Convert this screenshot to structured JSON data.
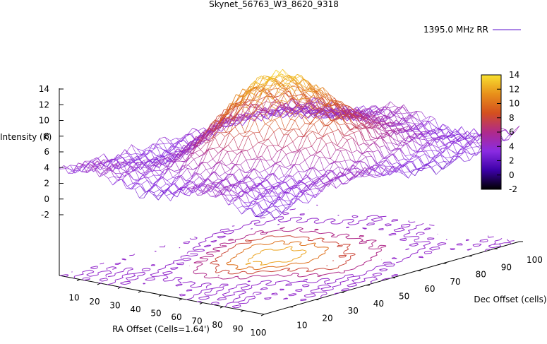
{
  "chart_data": {
    "type": "surface3d",
    "title": "Skynet_56763_W3_8620_9318",
    "legend": {
      "label": "1395.0 MHz RR",
      "color": "#7b3fd6",
      "placement": "top-right"
    },
    "xlabel": "RA Offset (Cells=1.64')",
    "ylabel": "Dec Offset (cells)",
    "zlabel": "Intensity (K)",
    "x_ticks": [
      "10",
      "20",
      "30",
      "40",
      "50",
      "60",
      "70",
      "80",
      "90",
      "100"
    ],
    "y_ticks": [
      "10",
      "20",
      "30",
      "40",
      "50",
      "60",
      "70",
      "80",
      "90",
      "100"
    ],
    "z_ticks": [
      "-2",
      "0",
      "2",
      "4",
      "6",
      "8",
      "10",
      "12",
      "14"
    ],
    "xlim": [
      0,
      100
    ],
    "ylim": [
      0,
      100
    ],
    "zlim": [
      -2,
      14
    ],
    "colorbar": {
      "range": [
        -2,
        14
      ],
      "ticks": [
        "14",
        "12",
        "10",
        "8",
        "6",
        "4",
        "2",
        "0",
        "-2"
      ],
      "palette": [
        "#000000",
        "#3c00a8",
        "#8a2be2",
        "#b02a8a",
        "#d4501e",
        "#e8901a",
        "#f8e030"
      ]
    },
    "peak": {
      "x": 45,
      "y": 52,
      "z": 14
    },
    "contour_levels": [
      4,
      6,
      8,
      10,
      12,
      14
    ]
  }
}
